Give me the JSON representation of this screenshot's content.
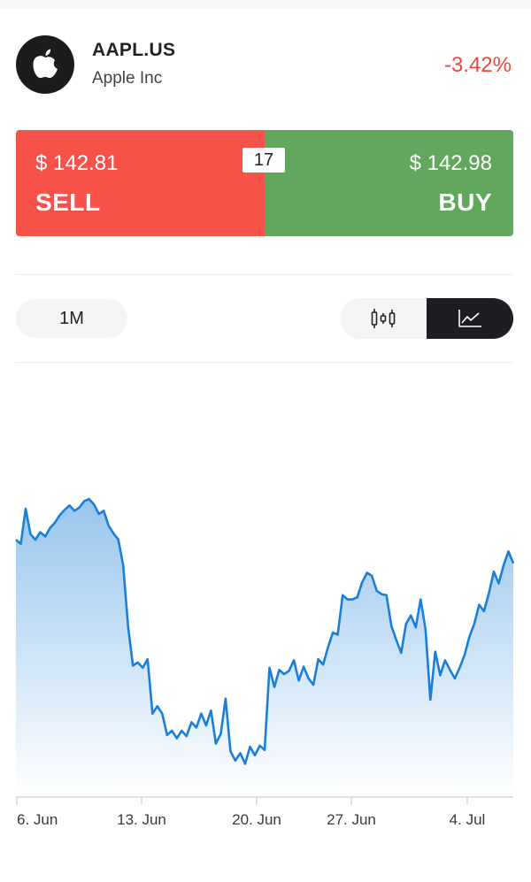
{
  "instrument": {
    "ticker": "AAPL.US",
    "company": "Apple Inc",
    "change": "-3.42%",
    "logo_icon": "apple-icon"
  },
  "trade": {
    "sell_price": "$ 142.81",
    "sell_label": "SELL",
    "buy_price": "$ 142.98",
    "buy_label": "BUY",
    "spread": "17",
    "sell_color": "#f7524a",
    "buy_color": "#62a75e"
  },
  "controls": {
    "period": "1M",
    "chart_types": [
      {
        "name": "candlestick-icon",
        "active": false
      },
      {
        "name": "line-chart-icon",
        "active": true
      }
    ]
  },
  "chart_data": {
    "type": "area",
    "x_tick_labels": [
      "6. Jun",
      "13. Jun",
      "20. Jun",
      "27. Jun",
      "4. Jul"
    ],
    "line_color": "#1a7fd8",
    "y": [
      150.2,
      149.8,
      153.1,
      150.7,
      150.2,
      150.9,
      150.5,
      151.3,
      151.8,
      152.5,
      153.0,
      153.4,
      152.9,
      153.2,
      153.8,
      154.0,
      153.5,
      152.6,
      152.9,
      151.5,
      150.8,
      150.2,
      147.8,
      142.1,
      138.4,
      138.7,
      138.2,
      139.0,
      133.9,
      134.6,
      133.9,
      131.9,
      132.3,
      131.6,
      132.3,
      131.8,
      133.1,
      132.6,
      133.9,
      132.8,
      134.2,
      131.1,
      132.0,
      135.3,
      130.4,
      129.5,
      130.2,
      129.2,
      130.8,
      130.0,
      130.9,
      130.5,
      138.2,
      136.4,
      138.0,
      137.6,
      137.9,
      138.9,
      137.0,
      138.3,
      137.2,
      136.6,
      139.0,
      138.5,
      140.1,
      141.5,
      141.3,
      145.0,
      144.6,
      144.6,
      144.8,
      146.2,
      147.1,
      146.8,
      145.4,
      145.1,
      145.0,
      142.1,
      140.8,
      139.6,
      142.3,
      143.1,
      142.0,
      144.6,
      141.8,
      135.2,
      139.7,
      137.5,
      138.9,
      138.0,
      137.2,
      138.2,
      139.4,
      141.1,
      142.3,
      144.1,
      143.5,
      145.2,
      147.2,
      146.1,
      147.8,
      149.1,
      148.0
    ]
  }
}
